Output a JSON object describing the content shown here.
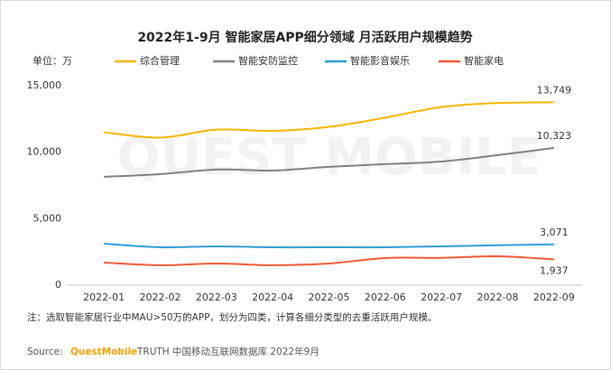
{
  "chart_data": {
    "type": "line",
    "title": "2022年1-9月 智能家居APP细分领域 月活跃用户规模趋势",
    "unit_label": "单位：万",
    "watermark": "QUEST MOBILE",
    "legend": "top",
    "categories": [
      "2022-01",
      "2022-02",
      "2022-03",
      "2022-04",
      "2022-05",
      "2022-06",
      "2022-07",
      "2022-08",
      "2022-09"
    ],
    "series": [
      {
        "name": "综合管理",
        "color": "#f7b500",
        "values": [
          11500,
          11100,
          11700,
          11600,
          11900,
          12600,
          13400,
          13700,
          13749
        ],
        "value_labels": [
          null,
          null,
          null,
          null,
          null,
          null,
          null,
          null,
          "13,749"
        ]
      },
      {
        "name": "智能安防监控",
        "color": "#808080",
        "values": [
          8150,
          8350,
          8700,
          8620,
          8900,
          9100,
          9300,
          9780,
          10323
        ],
        "value_labels": [
          null,
          null,
          null,
          null,
          null,
          null,
          null,
          null,
          "10,323"
        ]
      },
      {
        "name": "智能影音娱乐",
        "color": "#2e9cd6",
        "values": [
          3120,
          2850,
          2920,
          2850,
          2850,
          2850,
          2920,
          3000,
          3071
        ],
        "value_labels": [
          null,
          null,
          null,
          null,
          null,
          null,
          null,
          null,
          "3,071"
        ]
      },
      {
        "name": "智能家电",
        "color": "#ea5a34",
        "values": [
          1700,
          1500,
          1630,
          1500,
          1630,
          2040,
          2050,
          2170,
          1937
        ],
        "value_labels": [
          null,
          null,
          null,
          null,
          null,
          null,
          null,
          null,
          "1,937"
        ]
      }
    ],
    "ylim": [
      0,
      15000
    ],
    "yticks": [
      0,
      {
        "value": 5000,
        "label": "5,000"
      },
      {
        "value": 10000,
        "label": "10,000"
      },
      {
        "value": 15000,
        "label": "15,000"
      }
    ],
    "grid": false,
    "note": "注：选取智能家居行业中MAU>50万的APP，划分为四类，计算各细分类型的去重活跃用户规模。",
    "source": {
      "prefix": "Source:",
      "brand": "QuestMobile",
      "text": "TRUTH 中国移动互联网数据库 2022年9月"
    }
  }
}
